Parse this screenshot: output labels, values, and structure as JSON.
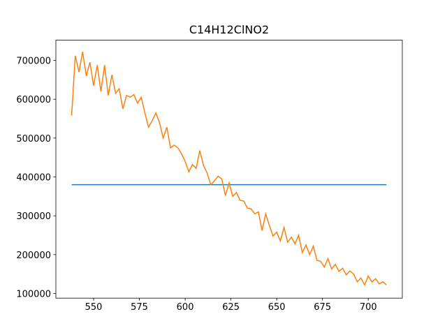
{
  "chart_data": {
    "type": "line",
    "title": "C14H12ClNO2",
    "xlim": [
      529.4,
      718.6
    ],
    "ylim": [
      88000,
      752000
    ],
    "xticks": [
      550,
      575,
      600,
      625,
      650,
      675,
      700
    ],
    "yticks": [
      100000,
      200000,
      300000,
      400000,
      500000,
      600000,
      700000
    ],
    "series": [
      {
        "color": "#1f77b4",
        "x": [
          538,
          710
        ],
        "values": [
          380000,
          380000
        ]
      },
      {
        "color": "#ff7f0e",
        "x": [
          538,
          540,
          542,
          544,
          546,
          548,
          550,
          552,
          554,
          556,
          558,
          560,
          562,
          564,
          566,
          568,
          570,
          572,
          574,
          576,
          578,
          580,
          582,
          584,
          586,
          588,
          590,
          592,
          594,
          596,
          598,
          600,
          602,
          604,
          606,
          608,
          610,
          612,
          614,
          616,
          618,
          620,
          622,
          624,
          626,
          628,
          630,
          632,
          634,
          636,
          638,
          640,
          642,
          644,
          646,
          648,
          650,
          652,
          654,
          656,
          658,
          660,
          662,
          664,
          666,
          668,
          670,
          672,
          674,
          676,
          678,
          680,
          682,
          684,
          686,
          688,
          690,
          692,
          694,
          696,
          698,
          700,
          702,
          704,
          706,
          708,
          710
        ],
        "values": [
          558000,
          712000,
          670000,
          722000,
          660000,
          695000,
          635000,
          688000,
          620000,
          688000,
          610000,
          663000,
          615000,
          627000,
          575000,
          610000,
          605000,
          612000,
          590000,
          605000,
          565000,
          528000,
          545000,
          565000,
          540000,
          500000,
          528000,
          475000,
          482000,
          475000,
          460000,
          440000,
          413000,
          432000,
          422000,
          468000,
          430000,
          410000,
          380000,
          390000,
          402000,
          395000,
          352000,
          385000,
          350000,
          360000,
          340000,
          338000,
          320000,
          318000,
          305000,
          310000,
          262000,
          305000,
          275000,
          248000,
          258000,
          235000,
          270000,
          232000,
          245000,
          228000,
          250000,
          205000,
          225000,
          200000,
          222000,
          185000,
          183000,
          168000,
          190000,
          163000,
          175000,
          157000,
          165000,
          148000,
          158000,
          150000,
          130000,
          140000,
          122000,
          145000,
          130000,
          138000,
          125000,
          130000,
          122000
        ]
      }
    ]
  }
}
